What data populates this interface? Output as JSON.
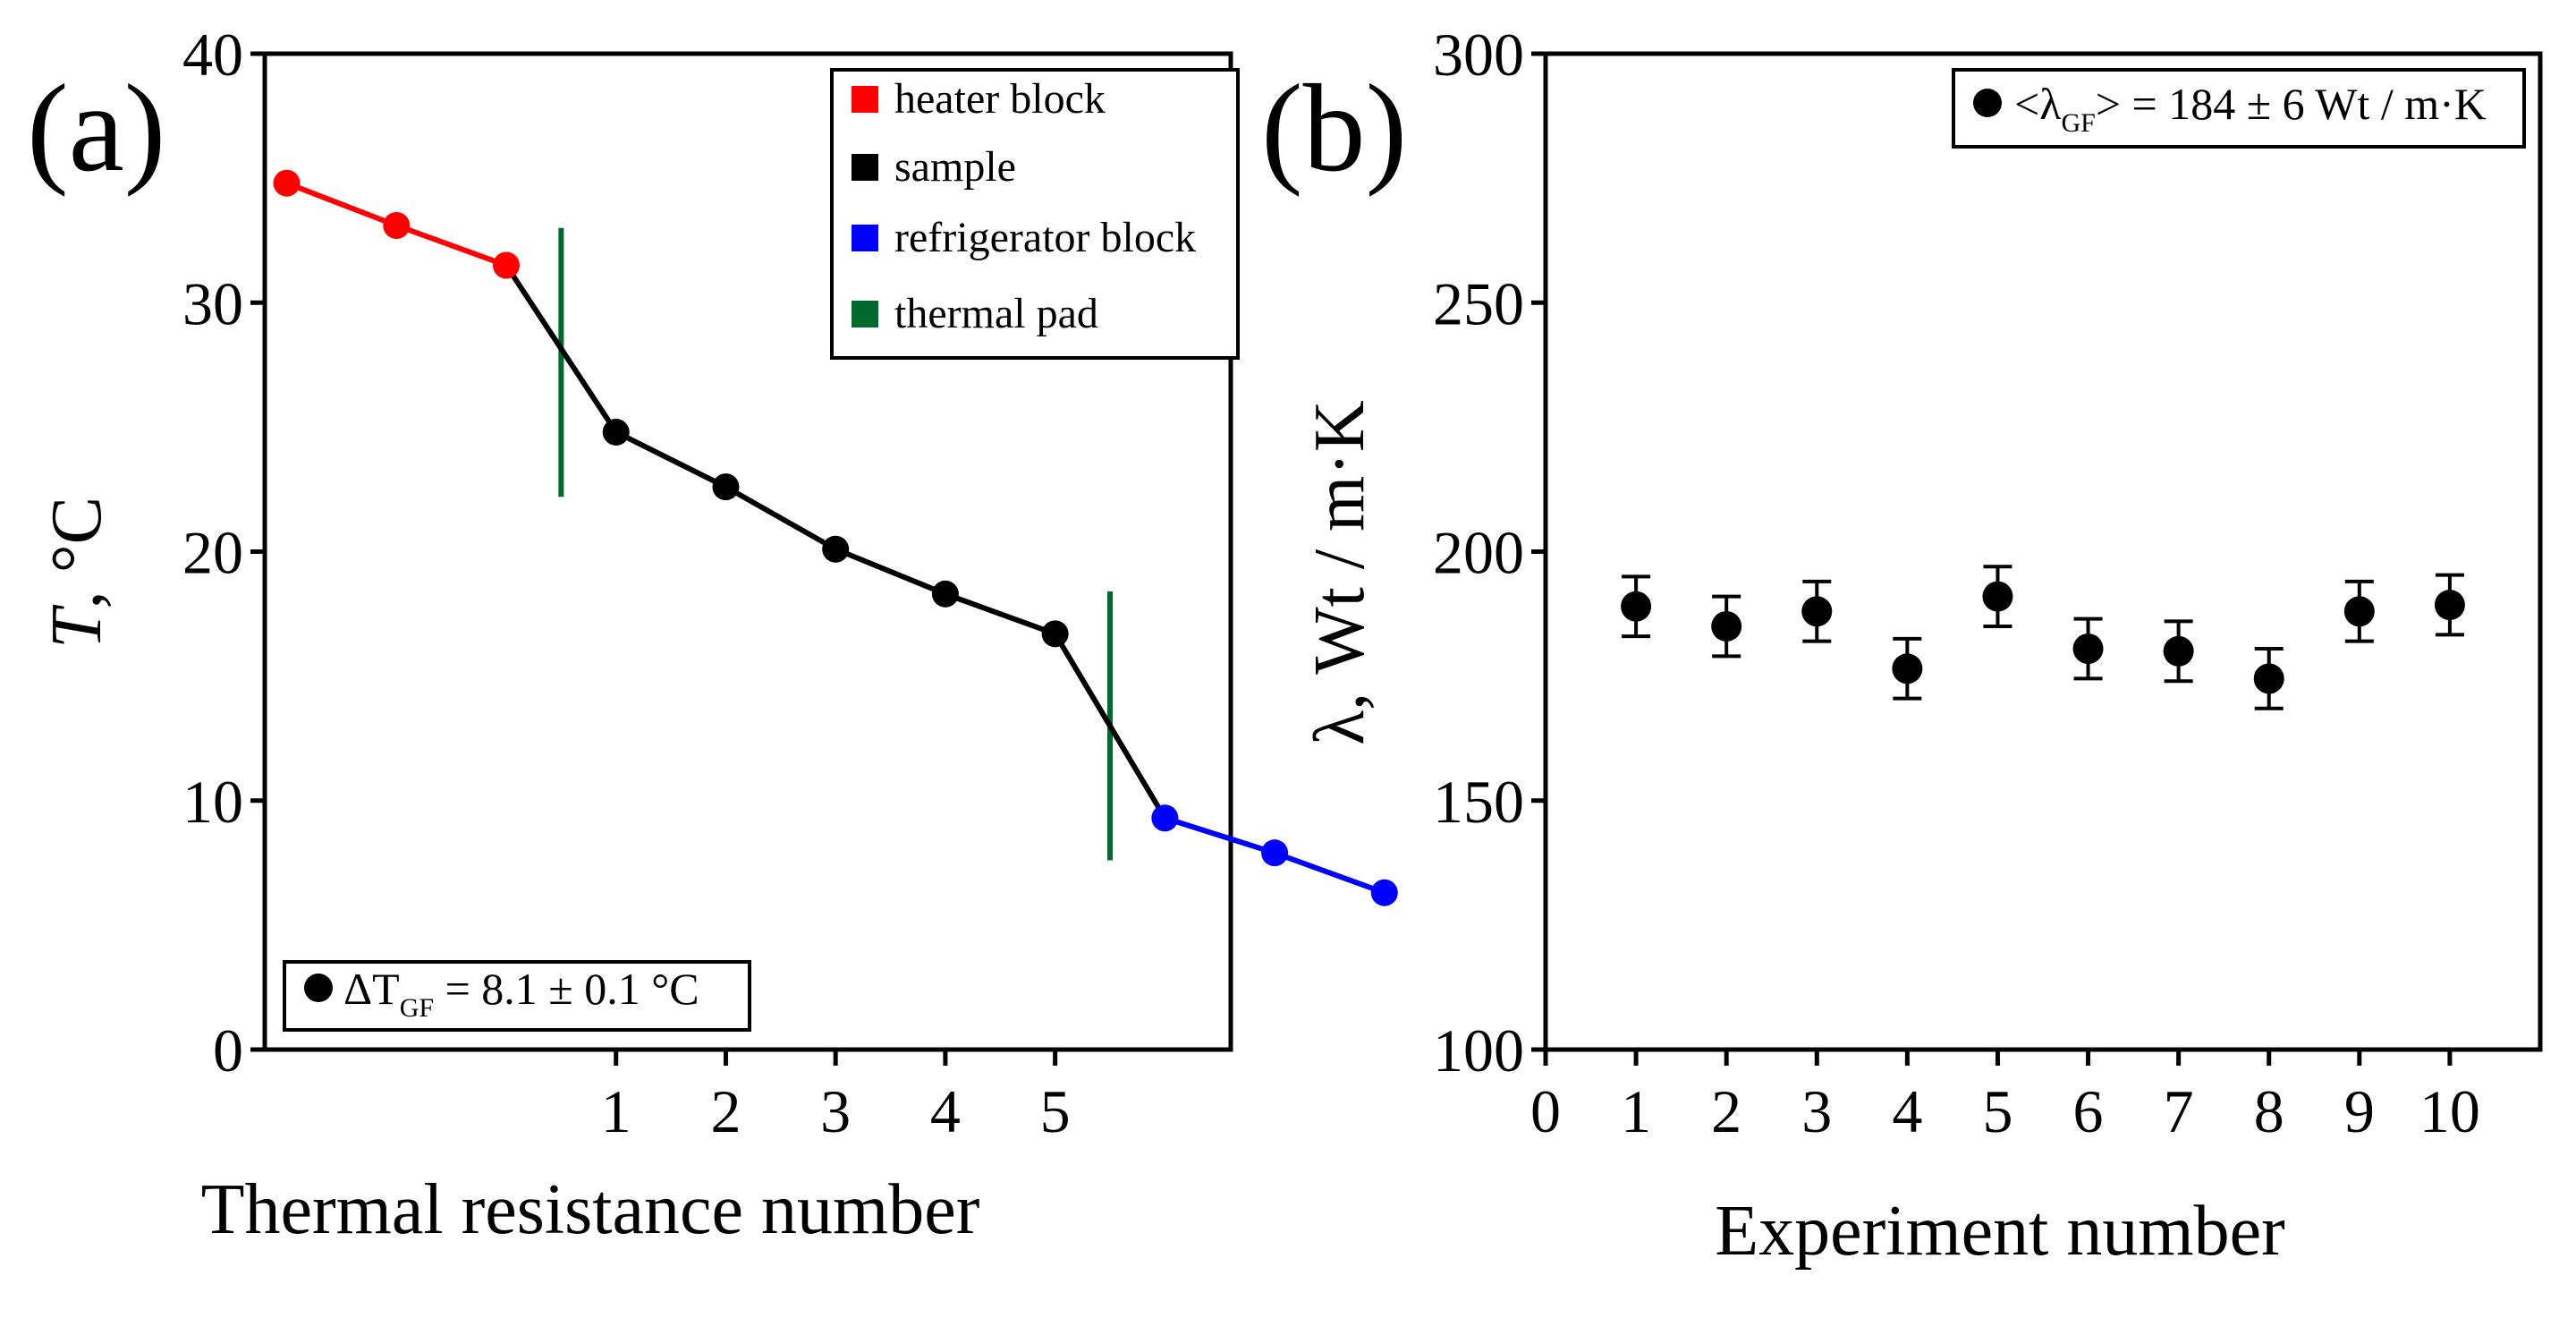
{
  "panels": {
    "a": {
      "label": "(a)"
    },
    "b": {
      "label": "(b)"
    }
  },
  "chart_data": [
    {
      "type": "line",
      "panel": "(a)",
      "title": "",
      "xlabel": "Thermal resistance number",
      "ylabel_italic": "T",
      "ylabel_rest": ", °C",
      "ylim": [
        0,
        40
      ],
      "yticks": [
        0,
        10,
        20,
        30,
        40
      ],
      "xticks": [
        1,
        2,
        3,
        4,
        5
      ],
      "xlim": [
        -2.2,
        6.6
      ],
      "series": [
        {
          "name": "heater block",
          "color": "#ff0000",
          "x": [
            -2,
            -1,
            0
          ],
          "y": [
            34.8,
            33.1,
            31.5
          ]
        },
        {
          "name": "sample",
          "color": "#000000",
          "x": [
            0,
            1,
            2,
            3,
            4,
            5,
            6
          ],
          "y": [
            31.5,
            24.8,
            22.6,
            20.1,
            18.3,
            16.7,
            9.3
          ],
          "marker_x": [
            1,
            2,
            3,
            4,
            5
          ],
          "marker_y": [
            24.8,
            22.6,
            20.1,
            18.3,
            16.7
          ]
        },
        {
          "name": "refrigerator block",
          "color": "#0000ff",
          "x": [
            6,
            7,
            8
          ],
          "y": [
            9.3,
            7.9,
            6.3
          ]
        },
        {
          "name": "thermal pad",
          "color": "#006a2e",
          "segments": [
            {
              "x": 0.5,
              "y0": 22.2,
              "y1": 33.0
            },
            {
              "x": 5.5,
              "y0": 7.6,
              "y1": 18.4
            }
          ]
        }
      ],
      "legend_items": [
        {
          "label": "heater block",
          "color": "#ff0000"
        },
        {
          "label": "sample",
          "color": "#000000"
        },
        {
          "label": "refrigerator block",
          "color": "#0000ff"
        },
        {
          "label": "thermal pad",
          "color": "#006a2e"
        }
      ],
      "legend_placement": "top-right",
      "annotation": {
        "prefix": "ΔT",
        "sub": "GF",
        "suffix": " = 8.1 ± 0.1 °C",
        "placement": "bottom-left"
      }
    },
    {
      "type": "scatter",
      "panel": "(b)",
      "title": "",
      "xlabel": "Experiment number",
      "ylabel": "λ, Wt / m·K",
      "ylim": [
        100,
        300
      ],
      "yticks": [
        100,
        150,
        200,
        250,
        300
      ],
      "xlim": [
        0,
        11
      ],
      "xticks": [
        0,
        1,
        2,
        3,
        4,
        5,
        6,
        7,
        8,
        9,
        10
      ],
      "series": [
        {
          "name": "λ",
          "color": "#000000",
          "x": [
            1,
            2,
            3,
            4,
            5,
            6,
            7,
            8,
            9,
            10
          ],
          "y": [
            189,
            185,
            188,
            176.5,
            191,
            180.5,
            180,
            174.5,
            188,
            189.3
          ],
          "err": [
            6,
            6,
            6,
            6,
            6,
            6,
            6,
            6,
            6,
            6
          ]
        }
      ],
      "legend": {
        "prefix": "<λ",
        "sub": "GF",
        "suffix": "> = 184 ± 6 Wt / m·K",
        "placement": "top-right"
      }
    }
  ]
}
